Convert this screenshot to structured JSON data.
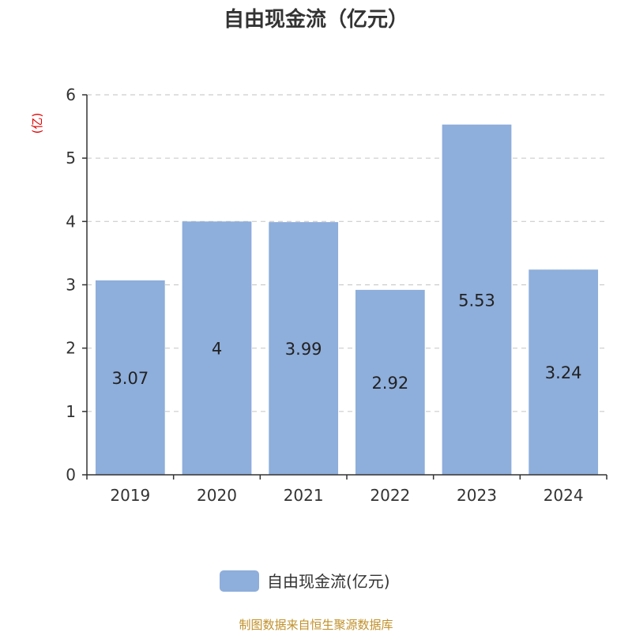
{
  "source_text": "制图数据来自恒生聚源数据库",
  "colors": {
    "bar": "#8eaedb",
    "ylabel": "#e00000",
    "source": "#c0902a",
    "axis": "#333333",
    "grid": "#cccccc"
  },
  "chart_data": {
    "type": "bar",
    "title": "自由现金流（亿元）",
    "ylabel": "(亿)",
    "xlabel": "",
    "categories": [
      "2019",
      "2020",
      "2021",
      "2022",
      "2023",
      "2024"
    ],
    "series": [
      {
        "name": "自由现金流(亿元)",
        "values": [
          3.07,
          4,
          3.99,
          2.92,
          5.53,
          3.24
        ]
      }
    ],
    "data_labels": [
      "3.07",
      "4",
      "3.99",
      "2.92",
      "5.53",
      "3.24"
    ],
    "ylim": [
      0,
      6
    ],
    "yticks": [
      0,
      1,
      2,
      3,
      4,
      5,
      6
    ],
    "grid": true,
    "legend_position": "bottom-center"
  }
}
